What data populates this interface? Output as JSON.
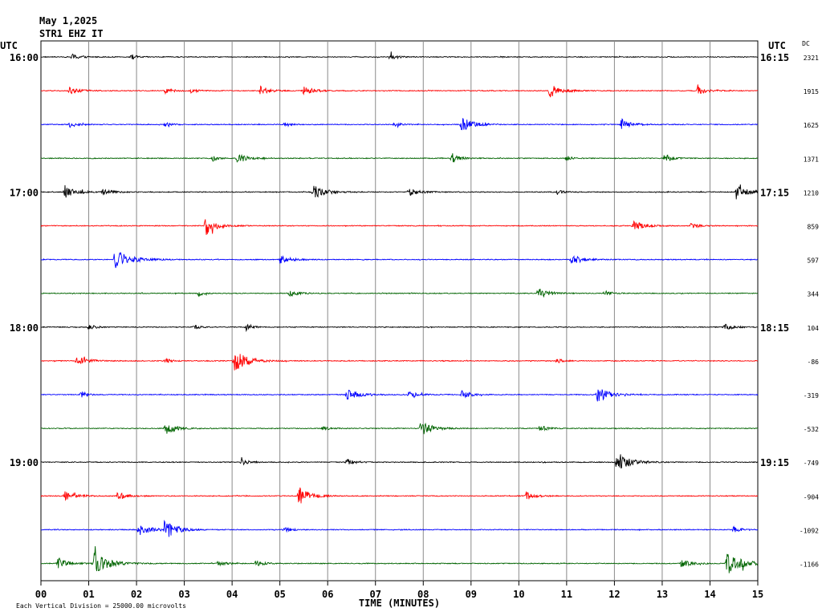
{
  "header": {
    "date": "May 1,2025",
    "station": "STR1 EHZ IT"
  },
  "chart_data": {
    "type": "line",
    "title": "",
    "xlabel": "TIME (MINUTES)",
    "ylabel": "",
    "left_axis_label": "UTC",
    "right_axis_label": "UTC",
    "dc_label": "DC",
    "footer_note": "Each Vertical Division = 25000.00 microvolts",
    "xlim": [
      0,
      15
    ],
    "x_ticks": [
      "00",
      "01",
      "02",
      "03",
      "04",
      "05",
      "06",
      "07",
      "08",
      "09",
      "10",
      "11",
      "12",
      "13",
      "14",
      "15"
    ],
    "left_time_labels": [
      {
        "row": 0,
        "label": "16:00"
      },
      {
        "row": 4,
        "label": "17:00"
      },
      {
        "row": 8,
        "label": "18:00"
      },
      {
        "row": 12,
        "label": "19:00"
      }
    ],
    "right_time_labels": [
      {
        "row": 0,
        "label": "16:15"
      },
      {
        "row": 4,
        "label": "17:15"
      },
      {
        "row": 8,
        "label": "18:15"
      },
      {
        "row": 12,
        "label": "19:15"
      }
    ],
    "dc_values": [
      "2321",
      "1915",
      "1625",
      "1371",
      "1210",
      "859",
      "597",
      "344",
      "104",
      "-86",
      "-319",
      "-532",
      "-749",
      "-904",
      "-1092",
      "-1166"
    ],
    "trace_colors": [
      "#000000",
      "#ff0000",
      "#0000ff",
      "#006400"
    ],
    "series": [
      {
        "row": 0,
        "events": [
          [
            0.65,
            1.2,
            0.5
          ],
          [
            1.9,
            1.0,
            0.3
          ],
          [
            7.3,
            1.3,
            0.4
          ]
        ]
      },
      {
        "row": 1,
        "events": [
          [
            0.6,
            1.6,
            0.5
          ],
          [
            2.6,
            1.3,
            0.4
          ],
          [
            3.15,
            1.0,
            0.3
          ],
          [
            4.6,
            1.8,
            0.5
          ],
          [
            5.5,
            1.8,
            0.6
          ],
          [
            10.65,
            2.6,
            0.6
          ],
          [
            13.75,
            1.6,
            0.5
          ]
        ]
      },
      {
        "row": 2,
        "events": [
          [
            0.6,
            1.2,
            0.4
          ],
          [
            2.6,
            1.0,
            0.3
          ],
          [
            5.1,
            1.0,
            0.3
          ],
          [
            7.4,
            1.0,
            0.3
          ],
          [
            8.8,
            3.4,
            0.6
          ],
          [
            12.15,
            2.2,
            0.5
          ]
        ]
      },
      {
        "row": 3,
        "events": [
          [
            3.6,
            1.0,
            0.3
          ],
          [
            4.1,
            2.2,
            0.5
          ],
          [
            8.6,
            2.0,
            0.4
          ],
          [
            11.0,
            1.0,
            0.3
          ],
          [
            13.05,
            1.8,
            0.4
          ]
        ]
      },
      {
        "row": 4,
        "events": [
          [
            0.5,
            2.6,
            0.6
          ],
          [
            1.3,
            1.3,
            0.5
          ],
          [
            5.7,
            2.6,
            0.7
          ],
          [
            7.7,
            1.5,
            0.6
          ],
          [
            10.8,
            1.0,
            0.3
          ],
          [
            14.55,
            3.0,
            0.6
          ]
        ]
      },
      {
        "row": 5,
        "events": [
          [
            3.45,
            3.6,
            0.6
          ],
          [
            12.4,
            1.8,
            0.6
          ],
          [
            13.6,
            0.9,
            0.4
          ]
        ]
      },
      {
        "row": 6,
        "events": [
          [
            1.55,
            4.0,
            0.8
          ],
          [
            5.0,
            1.5,
            0.6
          ],
          [
            11.1,
            2.0,
            0.6
          ]
        ]
      },
      {
        "row": 7,
        "events": [
          [
            3.3,
            1.0,
            0.3
          ],
          [
            5.2,
            1.2,
            0.5
          ],
          [
            10.4,
            2.2,
            0.6
          ],
          [
            11.8,
            1.0,
            0.4
          ]
        ]
      },
      {
        "row": 8,
        "events": [
          [
            1.0,
            1.0,
            0.4
          ],
          [
            3.2,
            1.1,
            0.3
          ],
          [
            4.3,
            1.6,
            0.3
          ],
          [
            14.3,
            1.3,
            0.5
          ]
        ]
      },
      {
        "row": 9,
        "events": [
          [
            0.75,
            1.8,
            0.6
          ],
          [
            2.6,
            1.0,
            0.3
          ],
          [
            4.05,
            4.2,
            0.7
          ],
          [
            10.8,
            1.0,
            0.3
          ]
        ]
      },
      {
        "row": 10,
        "events": [
          [
            0.85,
            1.3,
            0.3
          ],
          [
            6.4,
            2.0,
            0.7
          ],
          [
            7.7,
            1.1,
            0.5
          ],
          [
            8.8,
            1.5,
            0.5
          ],
          [
            11.65,
            3.2,
            0.6
          ]
        ]
      },
      {
        "row": 11,
        "events": [
          [
            2.6,
            2.6,
            0.6
          ],
          [
            5.9,
            1.0,
            0.3
          ],
          [
            7.95,
            3.2,
            0.6
          ],
          [
            10.45,
            1.2,
            0.4
          ]
        ]
      },
      {
        "row": 12,
        "events": [
          [
            4.2,
            1.5,
            0.4
          ],
          [
            6.4,
            1.2,
            0.5
          ],
          [
            12.05,
            4.0,
            0.7
          ]
        ]
      },
      {
        "row": 13,
        "events": [
          [
            0.5,
            1.8,
            0.6
          ],
          [
            1.6,
            1.5,
            0.5
          ],
          [
            5.4,
            3.5,
            0.6
          ],
          [
            10.15,
            1.6,
            0.5
          ]
        ]
      },
      {
        "row": 14,
        "events": [
          [
            2.05,
            2.2,
            0.7
          ],
          [
            2.6,
            3.6,
            0.6
          ],
          [
            5.1,
            1.0,
            0.4
          ],
          [
            14.5,
            1.2,
            0.4
          ]
        ]
      },
      {
        "row": 15,
        "events": [
          [
            0.35,
            2.0,
            0.6
          ],
          [
            1.1,
            4.2,
            0.8
          ],
          [
            3.7,
            1.0,
            0.4
          ],
          [
            4.5,
            1.2,
            0.4
          ],
          [
            13.4,
            1.8,
            0.5
          ],
          [
            14.35,
            4.4,
            0.9
          ]
        ]
      }
    ]
  }
}
